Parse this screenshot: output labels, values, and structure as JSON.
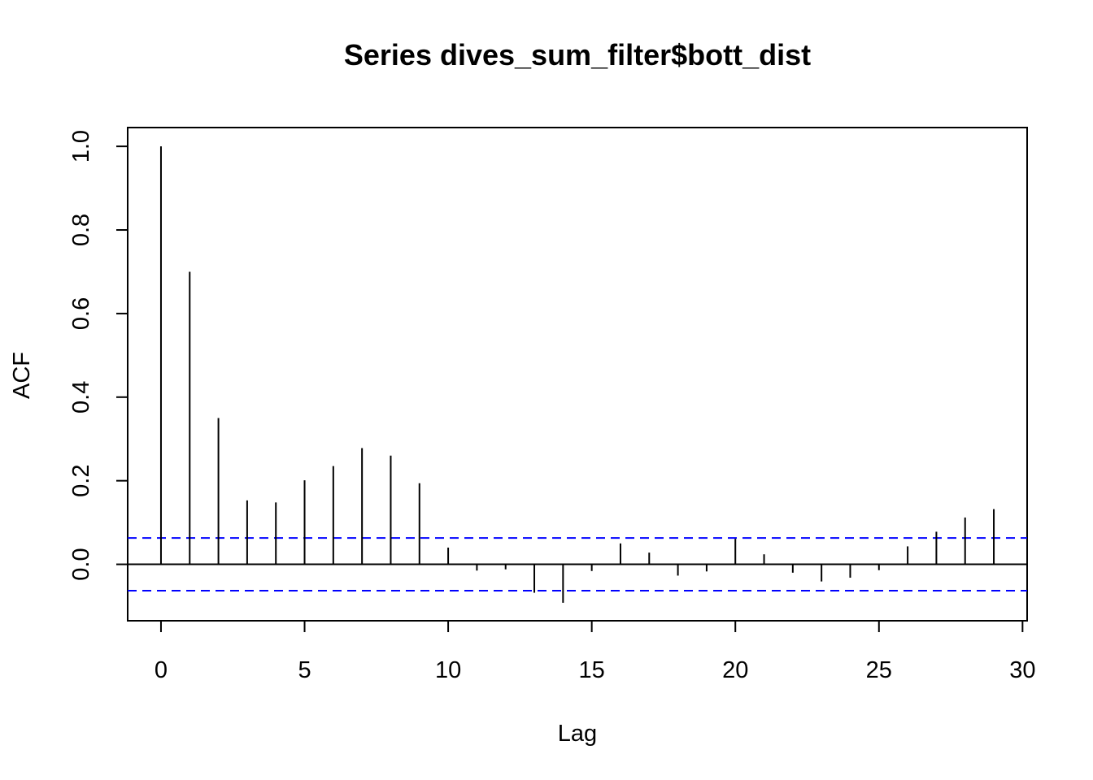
{
  "chart_data": {
    "type": "bar",
    "title": "Series  dives_sum_filter$bott_dist",
    "xlabel": "Lag",
    "ylabel": "ACF",
    "xlim": [
      -1.16,
      30.16
    ],
    "ylim": [
      -0.135,
      1.045
    ],
    "x_ticks": [
      "0",
      "5",
      "10",
      "15",
      "20",
      "25",
      "30"
    ],
    "y_ticks": [
      "0.0",
      "0.2",
      "0.4",
      "0.6",
      "0.8",
      "1.0"
    ],
    "zero_line": true,
    "grid": false,
    "legend": "none",
    "confidence_bound": 0.063,
    "colors": {
      "bars": "#000000",
      "confidence_lines": "#0000ff",
      "frame": "#000000"
    },
    "lags": [
      0,
      1,
      2,
      3,
      4,
      5,
      6,
      7,
      8,
      9,
      10,
      11,
      12,
      13,
      14,
      15,
      16,
      17,
      18,
      19,
      20,
      21,
      22,
      23,
      24,
      25,
      26,
      27,
      28,
      29
    ],
    "values": [
      1.0,
      0.7,
      0.35,
      0.153,
      0.148,
      0.201,
      0.235,
      0.278,
      0.26,
      0.194,
      0.04,
      -0.015,
      -0.012,
      -0.068,
      -0.092,
      -0.016,
      0.05,
      0.028,
      -0.027,
      -0.017,
      0.061,
      0.024,
      -0.02,
      -0.041,
      -0.032,
      -0.014,
      0.043,
      0.078,
      0.112,
      0.132
    ]
  }
}
